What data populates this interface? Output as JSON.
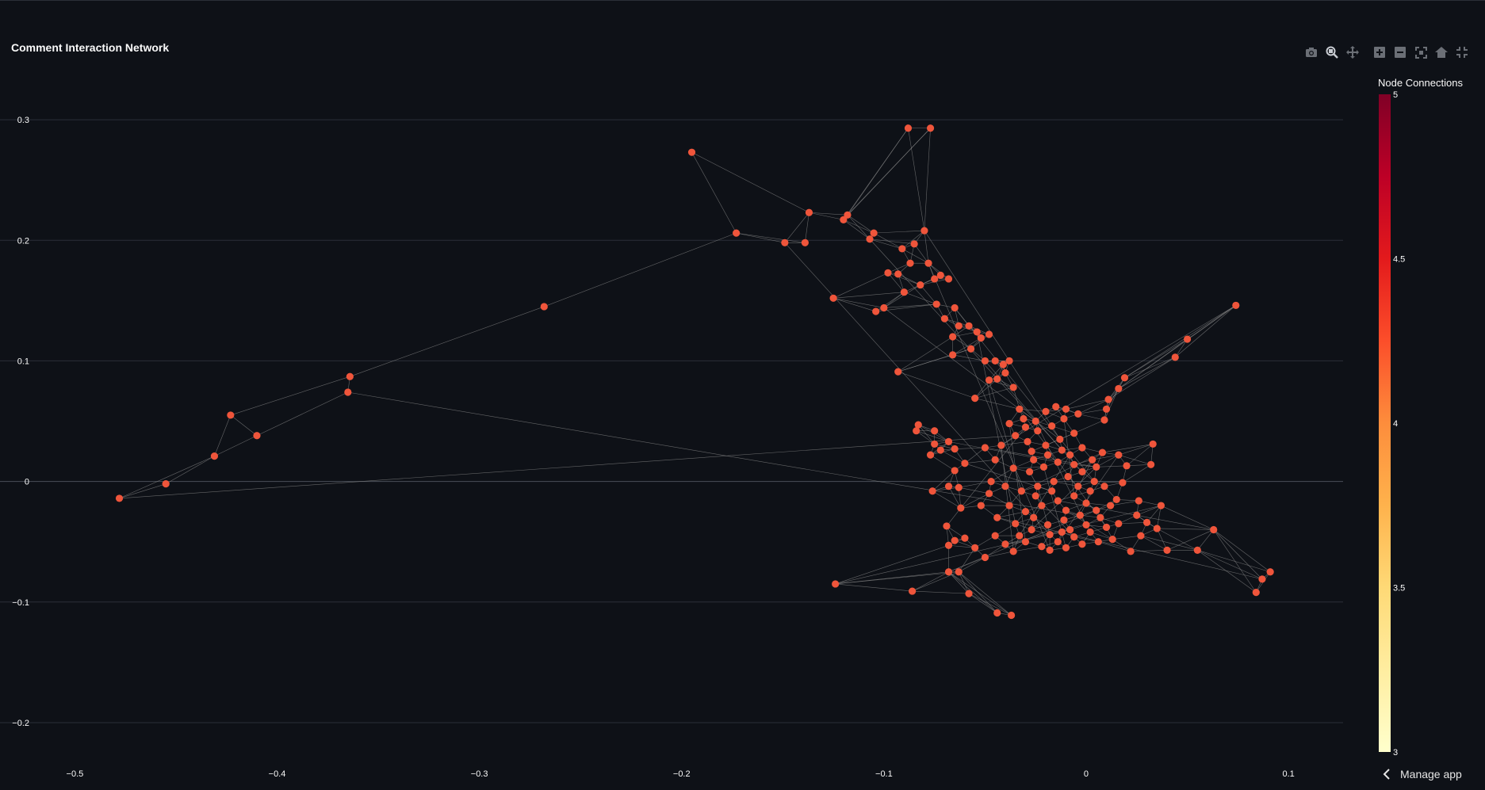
{
  "chart_data": {
    "type": "network-scatter",
    "title": "Comment Interaction Network",
    "x_ticks": [
      -0.5,
      -0.4,
      -0.3,
      -0.2,
      -0.1,
      0,
      0.1
    ],
    "x_tick_labels": [
      "−0.5",
      "−0.4",
      "−0.3",
      "−0.2",
      "−0.1",
      "0",
      "0.1"
    ],
    "y_ticks": [
      0.3,
      0.2,
      0.1,
      0,
      -0.1,
      -0.2
    ],
    "y_tick_labels": [
      "0.3",
      "0.2",
      "0.1",
      "0",
      "−0.1",
      "−0.2"
    ],
    "xlim": [
      -0.537,
      0.127
    ],
    "ylim": [
      -0.225,
      0.327
    ],
    "grid": true,
    "node_color": "#ef553b",
    "edge_color": "#8a8a8a",
    "colorbar": {
      "title": "Node Connections",
      "min": 3,
      "max": 5,
      "tick_values": [
        5,
        4.5,
        4,
        3.5,
        3
      ],
      "tick_labels": [
        "5",
        "4.5",
        "4",
        "3.5",
        "3"
      ],
      "colors": [
        "#ffffcc",
        "#ffeda0",
        "#fed976",
        "#feb24c",
        "#fd8d3c",
        "#fc4e2a",
        "#e31a1c",
        "#bd0026",
        "#800026"
      ]
    },
    "nodes": [
      [
        -0.478,
        -0.014
      ],
      [
        -0.455,
        -0.002
      ],
      [
        -0.431,
        0.021
      ],
      [
        -0.423,
        0.055
      ],
      [
        -0.41,
        0.038
      ],
      [
        -0.365,
        0.074
      ],
      [
        -0.364,
        0.087
      ],
      [
        -0.268,
        0.145
      ],
      [
        -0.195,
        0.273
      ],
      [
        -0.173,
        0.206
      ],
      [
        -0.149,
        0.198
      ],
      [
        -0.139,
        0.198
      ],
      [
        -0.137,
        0.223
      ],
      [
        -0.12,
        0.217
      ],
      [
        -0.118,
        0.221
      ],
      [
        -0.107,
        0.201
      ],
      [
        -0.105,
        0.206
      ],
      [
        -0.098,
        0.173
      ],
      [
        -0.088,
        0.293
      ],
      [
        -0.077,
        0.293
      ],
      [
        -0.08,
        0.208
      ],
      [
        -0.091,
        0.193
      ],
      [
        -0.085,
        0.197
      ],
      [
        -0.125,
        0.152
      ],
      [
        -0.104,
        0.141
      ],
      [
        -0.1,
        0.144
      ],
      [
        -0.093,
        0.172
      ],
      [
        -0.09,
        0.157
      ],
      [
        -0.087,
        0.181
      ],
      [
        -0.082,
        0.163
      ],
      [
        -0.078,
        0.181
      ],
      [
        -0.075,
        0.168
      ],
      [
        -0.072,
        0.171
      ],
      [
        -0.068,
        0.168
      ],
      [
        -0.074,
        0.147
      ],
      [
        -0.065,
        0.144
      ],
      [
        -0.07,
        0.135
      ],
      [
        -0.063,
        0.129
      ],
      [
        -0.058,
        0.129
      ],
      [
        -0.066,
        0.12
      ],
      [
        -0.054,
        0.124
      ],
      [
        -0.057,
        0.11
      ],
      [
        -0.052,
        0.119
      ],
      [
        -0.048,
        0.122
      ],
      [
        -0.066,
        0.105
      ],
      [
        -0.05,
        0.1
      ],
      [
        -0.045,
        0.1
      ],
      [
        -0.041,
        0.097
      ],
      [
        -0.093,
        0.091
      ],
      [
        -0.038,
        0.1
      ],
      [
        -0.048,
        0.084
      ],
      [
        -0.044,
        0.085
      ],
      [
        -0.04,
        0.09
      ],
      [
        -0.036,
        0.078
      ],
      [
        -0.055,
        0.069
      ],
      [
        0.074,
        0.146
      ],
      [
        0.05,
        0.118
      ],
      [
        0.044,
        0.103
      ],
      [
        0.019,
        0.086
      ],
      [
        0.016,
        0.077
      ],
      [
        0.011,
        0.068
      ],
      [
        0.01,
        0.06
      ],
      [
        0.009,
        0.051
      ],
      [
        0.033,
        0.031
      ],
      [
        0.032,
        0.014
      ],
      [
        0.016,
        0.022
      ],
      [
        0.02,
        0.013
      ],
      [
        0.018,
        -0.001
      ],
      [
        0.015,
        -0.015
      ],
      [
        0.026,
        -0.016
      ],
      [
        0.037,
        -0.02
      ],
      [
        0.025,
        -0.028
      ],
      [
        0.03,
        -0.034
      ],
      [
        0.035,
        -0.039
      ],
      [
        0.027,
        -0.045
      ],
      [
        0.063,
        -0.04
      ],
      [
        0.055,
        -0.057
      ],
      [
        0.022,
        -0.058
      ],
      [
        0.04,
        -0.057
      ],
      [
        0.091,
        -0.075
      ],
      [
        0.087,
        -0.081
      ],
      [
        0.084,
        -0.092
      ],
      [
        -0.083,
        0.047
      ],
      [
        -0.084,
        0.042
      ],
      [
        -0.075,
        0.042
      ],
      [
        -0.068,
        0.033
      ],
      [
        -0.075,
        0.031
      ],
      [
        -0.072,
        0.026
      ],
      [
        -0.077,
        0.022
      ],
      [
        -0.065,
        0.027
      ],
      [
        -0.06,
        0.015
      ],
      [
        -0.065,
        0.009
      ],
      [
        -0.063,
        -0.005
      ],
      [
        -0.068,
        -0.004
      ],
      [
        -0.076,
        -0.008
      ],
      [
        -0.062,
        -0.022
      ],
      [
        -0.069,
        -0.037
      ],
      [
        -0.065,
        -0.049
      ],
      [
        -0.068,
        -0.053
      ],
      [
        -0.063,
        -0.075
      ],
      [
        -0.068,
        -0.075
      ],
      [
        -0.058,
        -0.093
      ],
      [
        -0.044,
        -0.109
      ],
      [
        -0.037,
        -0.111
      ],
      [
        -0.086,
        -0.091
      ],
      [
        -0.124,
        -0.085
      ],
      [
        -0.05,
        -0.063
      ],
      [
        -0.055,
        -0.055
      ],
      [
        -0.06,
        -0.047
      ],
      [
        -0.045,
        -0.045
      ],
      [
        -0.05,
        0.028
      ],
      [
        -0.045,
        0.018
      ],
      [
        -0.035,
        0.038
      ],
      [
        -0.03,
        0.045
      ],
      [
        -0.025,
        0.05
      ],
      [
        -0.02,
        0.058
      ],
      [
        -0.015,
        0.062
      ],
      [
        -0.01,
        0.06
      ],
      [
        -0.033,
        0.06
      ],
      [
        -0.027,
        0.025
      ],
      [
        -0.02,
        0.03
      ],
      [
        -0.013,
        0.035
      ],
      [
        -0.006,
        0.04
      ],
      [
        -0.036,
        0.011
      ],
      [
        -0.028,
        0.008
      ],
      [
        -0.021,
        0.012
      ],
      [
        -0.014,
        0.016
      ],
      [
        -0.008,
        0.022
      ],
      [
        -0.002,
        0.028
      ],
      [
        -0.04,
        -0.004
      ],
      [
        -0.032,
        -0.008
      ],
      [
        -0.024,
        -0.004
      ],
      [
        -0.016,
        0.0
      ],
      [
        -0.009,
        0.004
      ],
      [
        -0.002,
        0.008
      ],
      [
        0.005,
        0.012
      ],
      [
        -0.038,
        -0.02
      ],
      [
        -0.03,
        -0.025
      ],
      [
        -0.022,
        -0.02
      ],
      [
        -0.014,
        -0.016
      ],
      [
        -0.006,
        -0.012
      ],
      [
        0.002,
        -0.008
      ],
      [
        0.009,
        -0.004
      ],
      [
        -0.035,
        -0.035
      ],
      [
        -0.027,
        -0.04
      ],
      [
        -0.019,
        -0.036
      ],
      [
        -0.011,
        -0.032
      ],
      [
        -0.003,
        -0.028
      ],
      [
        0.005,
        -0.024
      ],
      [
        0.012,
        -0.02
      ],
      [
        -0.03,
        -0.05
      ],
      [
        -0.022,
        -0.054
      ],
      [
        -0.014,
        -0.05
      ],
      [
        -0.006,
        -0.046
      ],
      [
        0.002,
        -0.042
      ],
      [
        0.01,
        -0.038
      ],
      [
        -0.018,
        -0.057
      ],
      [
        -0.01,
        -0.055
      ],
      [
        -0.002,
        -0.052
      ],
      [
        0.006,
        -0.05
      ],
      [
        -0.025,
        -0.012
      ],
      [
        -0.017,
        -0.008
      ],
      [
        -0.01,
        -0.024
      ],
      [
        -0.004,
        -0.004
      ],
      [
        0.0,
        -0.018
      ],
      [
        -0.042,
        0.03
      ],
      [
        -0.038,
        0.048
      ],
      [
        -0.031,
        0.052
      ],
      [
        -0.024,
        0.042
      ],
      [
        -0.017,
        0.046
      ],
      [
        -0.011,
        0.052
      ],
      [
        -0.004,
        0.056
      ],
      [
        -0.047,
        0.0
      ],
      [
        -0.052,
        -0.02
      ],
      [
        -0.044,
        -0.03
      ],
      [
        -0.048,
        -0.01
      ],
      [
        -0.026,
        0.018
      ],
      [
        -0.019,
        0.022
      ],
      [
        -0.012,
        0.026
      ],
      [
        0.003,
        0.018
      ],
      [
        -0.033,
        -0.045
      ],
      [
        -0.026,
        -0.03
      ],
      [
        -0.018,
        -0.044
      ],
      [
        -0.008,
        -0.04
      ],
      [
        0.007,
        -0.03
      ],
      [
        0.013,
        -0.048
      ],
      [
        0.016,
        -0.035
      ],
      [
        -0.04,
        -0.052
      ],
      [
        -0.036,
        -0.058
      ],
      [
        -0.012,
        -0.042
      ],
      [
        0.0,
        -0.036
      ],
      [
        0.004,
        0.0
      ],
      [
        0.008,
        0.024
      ],
      [
        -0.006,
        0.014
      ],
      [
        -0.029,
        0.033
      ]
    ]
  },
  "modebar": {
    "icons": [
      "camera-icon",
      "zoom-icon",
      "pan-icon",
      "zoom-in-icon",
      "zoom-out-icon",
      "autoscale-icon",
      "home-icon",
      "spike-lines-icon"
    ]
  },
  "footer": {
    "manage_app_label": "Manage app"
  }
}
